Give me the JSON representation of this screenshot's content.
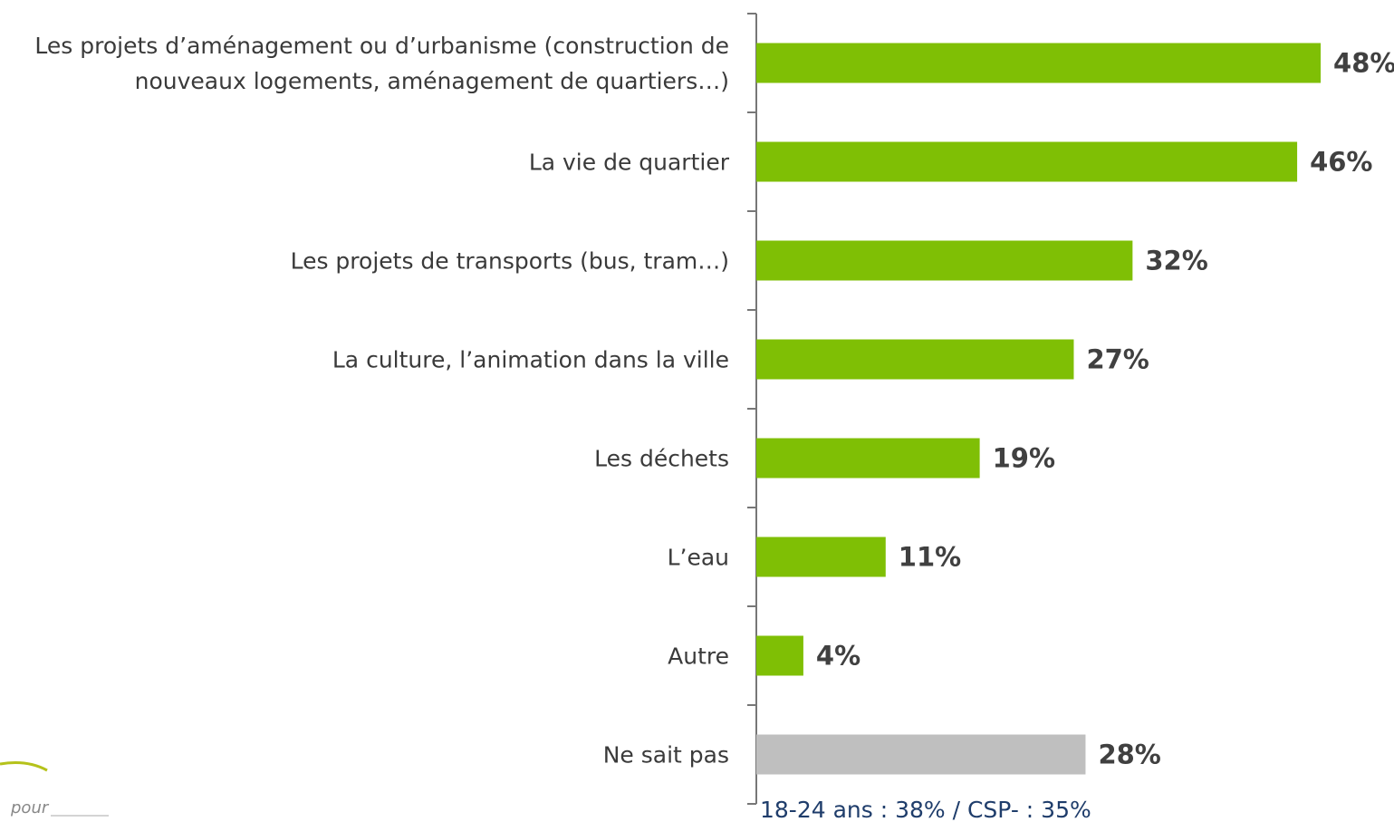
{
  "chart_data": {
    "type": "barh",
    "categories": [
      "Les projets d’aménagement ou d’urbanisme (construction de\nnouveaux logements, aménagement de quartiers…)",
      "La vie de quartier",
      "Les projets de transports (bus, tram…)",
      "La culture, l’animation dans la ville",
      "Les déchets",
      "L’eau",
      "Autre",
      "Ne sait pas"
    ],
    "values": [
      48,
      46,
      32,
      27,
      19,
      11,
      4,
      28
    ],
    "value_labels": [
      "48%",
      "46%",
      "32%",
      "27%",
      "19%",
      "11%",
      "4%",
      "28%"
    ],
    "colors": [
      "#7fbf05",
      "#7fbf05",
      "#7fbf05",
      "#7fbf05",
      "#7fbf05",
      "#7fbf05",
      "#7fbf05",
      "#bfbfbf"
    ],
    "xlim": [
      0,
      50
    ],
    "annotation": "18-24 ans : 38% / CSP- : 35%"
  },
  "footer": {
    "text": "pour"
  }
}
